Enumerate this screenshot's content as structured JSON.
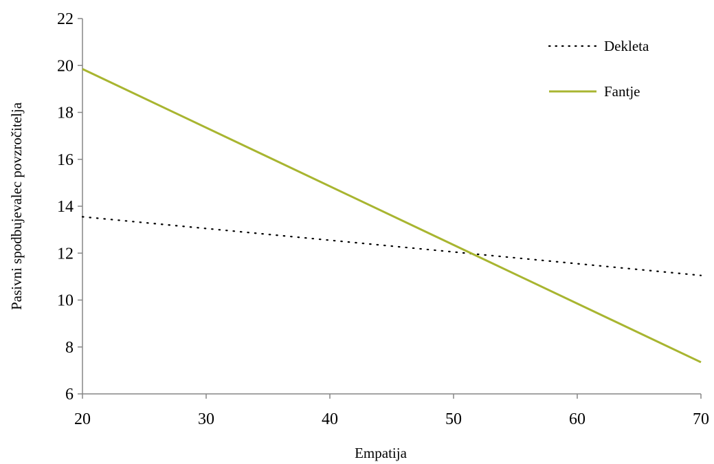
{
  "chart_data": {
    "type": "line",
    "title": "",
    "xlabel": "Empatija",
    "ylabel": "Pasivni spodbujevalec povzročitelja",
    "xlim": [
      20,
      70
    ],
    "ylim": [
      6,
      22
    ],
    "xticks": [
      20,
      30,
      40,
      50,
      60,
      70
    ],
    "yticks": [
      6,
      8,
      10,
      12,
      14,
      16,
      18,
      20,
      22
    ],
    "grid": false,
    "legend_position": "top-right",
    "series": [
      {
        "name": "Dekleta",
        "style": "dotted",
        "color": "#000000",
        "x": [
          20,
          70
        ],
        "y": [
          13.55,
          11.05
        ]
      },
      {
        "name": "Fantje",
        "style": "solid",
        "color": "#a8b530",
        "x": [
          20,
          70
        ],
        "y": [
          19.85,
          7.35
        ]
      }
    ]
  }
}
